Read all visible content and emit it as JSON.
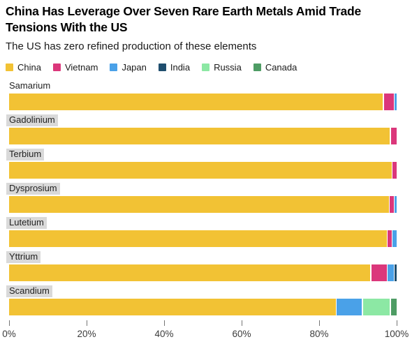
{
  "header": {
    "title": "China Has Leverage Over Seven Rare Earth Metals Amid Trade Tensions With the US",
    "subtitle": "The US has zero refined production of these elements"
  },
  "legend": [
    {
      "label": "China",
      "color": "#f2c234"
    },
    {
      "label": "Vietnam",
      "color": "#db377b"
    },
    {
      "label": "Japan",
      "color": "#4aa1e8"
    },
    {
      "label": "India",
      "color": "#1f4e6e"
    },
    {
      "label": "Russia",
      "color": "#8ce8a4"
    },
    {
      "label": "Canada",
      "color": "#4e9c64"
    }
  ],
  "chart_data": {
    "type": "bar",
    "orientation": "horizontal",
    "stacked": true,
    "unit": "percent share of refined production",
    "categories": [
      "Samarium",
      "Gadolinium",
      "Terbium",
      "Dysprosium",
      "Lutetium",
      "Yttrium",
      "Scandium"
    ],
    "label_highlight": [
      false,
      true,
      true,
      true,
      true,
      true,
      true
    ],
    "label_highlight_color": "#d9d9d9",
    "series": [
      {
        "name": "China",
        "color": "#f2c234",
        "values": [
          97.0,
          98.5,
          99.0,
          98.5,
          98.0,
          94.0,
          85.0
        ]
      },
      {
        "name": "Vietnam",
        "color": "#db377b",
        "values": [
          2.5,
          1.5,
          1.0,
          1.0,
          1.0,
          4.0,
          0
        ]
      },
      {
        "name": "Japan",
        "color": "#4aa1e8",
        "values": [
          0.5,
          0,
          0,
          0.5,
          1.0,
          1.5,
          6.5
        ]
      },
      {
        "name": "India",
        "color": "#1f4e6e",
        "values": [
          0,
          0,
          0,
          0,
          0,
          0.5,
          0
        ]
      },
      {
        "name": "Russia",
        "color": "#8ce8a4",
        "values": [
          0,
          0,
          0,
          0,
          0,
          0,
          7.0
        ]
      },
      {
        "name": "Canada",
        "color": "#4e9c64",
        "values": [
          0,
          0,
          0,
          0,
          0,
          0,
          1.5
        ]
      }
    ],
    "x_ticks": [
      "0%",
      "20%",
      "40%",
      "60%",
      "80%",
      "100%"
    ],
    "xlim": [
      0,
      100
    ],
    "grid": false,
    "legend_position": "top"
  }
}
